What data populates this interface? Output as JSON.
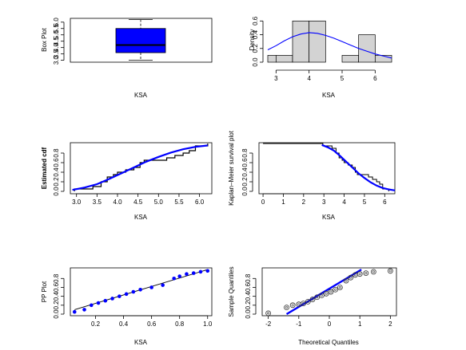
{
  "chart_data": [
    {
      "type": "box",
      "ylabel": "Box Plot",
      "xlabel": "KSA",
      "yticks": [
        "3.0",
        "3.5",
        "4.0",
        "4.5",
        "5.0",
        "5.5",
        "6.0"
      ],
      "ylim": [
        2.85,
        6.3
      ],
      "box": {
        "min": 3.0,
        "q1": 3.6,
        "median": 4.2,
        "q3": 5.5,
        "max": 6.2
      },
      "colors": {
        "box_fill": "#0000ff"
      }
    },
    {
      "type": "histogram",
      "ylabel": "Density",
      "xlabel": "KSA",
      "xticks": [
        "3",
        "4",
        "5",
        "6"
      ],
      "yticks": [
        "0.0",
        "0.2",
        "0.4",
        "0.6"
      ],
      "xlim": [
        2.75,
        6.5
      ],
      "ylim": [
        0,
        0.65
      ],
      "bins": [
        {
          "x0": 2.5,
          "x1": 3.0,
          "density": 0.1
        },
        {
          "x0": 3.0,
          "x1": 3.5,
          "density": 0.1
        },
        {
          "x0": 3.5,
          "x1": 4.0,
          "density": 0.6
        },
        {
          "x0": 4.0,
          "x1": 4.5,
          "density": 0.6
        },
        {
          "x0": 4.5,
          "x1": 5.0,
          "density": 0.0
        },
        {
          "x0": 5.0,
          "x1": 5.5,
          "density": 0.1
        },
        {
          "x0": 5.5,
          "x1": 6.0,
          "density": 0.4
        },
        {
          "x0": 6.0,
          "x1": 6.5,
          "density": 0.1
        }
      ],
      "density_curve": {
        "x": [
          2.75,
          3.0,
          3.25,
          3.5,
          3.75,
          4.0,
          4.25,
          4.5,
          4.75,
          5.0,
          5.25,
          5.5,
          5.75,
          6.0,
          6.25,
          6.5
        ],
        "y": [
          0.18,
          0.24,
          0.31,
          0.37,
          0.41,
          0.43,
          0.42,
          0.39,
          0.35,
          0.3,
          0.25,
          0.2,
          0.16,
          0.12,
          0.09,
          0.06
        ]
      },
      "colors": {
        "bar_fill": "#d3d3d3",
        "curve": "#0000ff"
      }
    },
    {
      "type": "line",
      "ylabel": "Estimated cdf",
      "xlabel": "KSA",
      "xticks": [
        "3.0",
        "3.5",
        "4.0",
        "4.5",
        "5.0",
        "5.5",
        "6.0"
      ],
      "yticks": [
        "0.0",
        "0.2",
        "0.4",
        "0.6",
        "0.8"
      ],
      "xlim": [
        2.85,
        6.3
      ],
      "ylim": [
        0,
        1.0
      ],
      "ecdf": {
        "x": [
          2.95,
          3.4,
          3.6,
          3.75,
          3.9,
          4.0,
          4.2,
          4.4,
          4.55,
          4.65,
          5.2,
          5.4,
          5.6,
          5.75,
          5.9,
          6.2
        ],
        "y": [
          0.05,
          0.1,
          0.2,
          0.3,
          0.35,
          0.4,
          0.45,
          0.5,
          0.6,
          0.65,
          0.7,
          0.75,
          0.8,
          0.85,
          0.95,
          1.0
        ]
      },
      "fit_curve": {
        "x": [
          2.9,
          3.2,
          3.5,
          3.8,
          4.1,
          4.4,
          4.7,
          5.0,
          5.3,
          5.6,
          5.9,
          6.2
        ],
        "y": [
          0.03,
          0.08,
          0.15,
          0.26,
          0.38,
          0.5,
          0.62,
          0.72,
          0.81,
          0.88,
          0.93,
          0.96
        ]
      },
      "colors": {
        "step": "#000000",
        "curve": "#0000ff"
      }
    },
    {
      "type": "line",
      "ylabel": "Kaplan–Meier survival plot",
      "xlabel": "KSA",
      "xticks": [
        "0",
        "1",
        "2",
        "3",
        "4",
        "5",
        "6"
      ],
      "yticks": [
        "0.0",
        "0.2",
        "0.4",
        "0.6",
        "0.8"
      ],
      "xlim": [
        -0.2,
        6.5
      ],
      "ylim": [
        0,
        1.0
      ],
      "km": {
        "x": [
          0,
          2.95,
          3.4,
          3.6,
          3.75,
          3.9,
          4.0,
          4.2,
          4.4,
          4.55,
          4.65,
          5.2,
          5.4,
          5.6,
          5.75,
          5.9,
          6.2
        ],
        "y": [
          1.0,
          0.95,
          0.9,
          0.8,
          0.7,
          0.65,
          0.6,
          0.55,
          0.5,
          0.4,
          0.35,
          0.3,
          0.25,
          0.2,
          0.15,
          0.05,
          0.0
        ]
      },
      "fit_curve": {
        "x": [
          2.9,
          3.2,
          3.5,
          3.8,
          4.1,
          4.4,
          4.7,
          5.0,
          5.3,
          5.6,
          5.9,
          6.2,
          6.5
        ],
        "y": [
          0.97,
          0.92,
          0.85,
          0.74,
          0.62,
          0.5,
          0.38,
          0.28,
          0.19,
          0.12,
          0.07,
          0.04,
          0.02
        ]
      },
      "colors": {
        "step": "#000000",
        "curve": "#0000ff"
      }
    },
    {
      "type": "scatter",
      "ylabel": "PP Plot",
      "xlabel": "KSA",
      "xticks": [
        "0.2",
        "0.4",
        "0.6",
        "0.8",
        "1.0"
      ],
      "yticks": [
        "0.0",
        "0.2",
        "0.4",
        "0.6",
        "0.8"
      ],
      "xlim": [
        0.02,
        1.03
      ],
      "ylim": [
        0,
        1.02
      ],
      "points": {
        "x": [
          0.05,
          0.12,
          0.17,
          0.22,
          0.27,
          0.32,
          0.37,
          0.42,
          0.47,
          0.52,
          0.6,
          0.68,
          0.76,
          0.8,
          0.85,
          0.9,
          0.95,
          1.0
        ],
        "y": [
          0.05,
          0.1,
          0.2,
          0.25,
          0.3,
          0.35,
          0.4,
          0.45,
          0.5,
          0.55,
          0.6,
          0.65,
          0.8,
          0.85,
          0.9,
          0.92,
          0.95,
          0.97
        ]
      },
      "ref_line": {
        "x": [
          0.05,
          1.0
        ],
        "y": [
          0.1,
          1.0
        ]
      },
      "colors": {
        "points": "#0000ff",
        "line": "#000000"
      }
    },
    {
      "type": "scatter",
      "ylabel": "Sample Quantiles",
      "xlabel": "Theoretical Quantiles",
      "xticks": [
        "-2",
        "-1",
        "0",
        "1",
        "2"
      ],
      "yticks": [
        "0.0",
        "0.2",
        "0.4",
        "0.6",
        "0.8"
      ],
      "xlim": [
        -2.2,
        2.2
      ],
      "ylim": [
        0,
        1.02
      ],
      "points": {
        "x": [
          -2.0,
          -1.4,
          -1.2,
          -1.0,
          -0.85,
          -0.7,
          -0.55,
          -0.4,
          -0.25,
          -0.1,
          0.05,
          0.2,
          0.35,
          0.55,
          0.7,
          0.85,
          1.0,
          1.2,
          1.45,
          2.0
        ],
        "y": [
          0.02,
          0.15,
          0.2,
          0.22,
          0.24,
          0.28,
          0.33,
          0.38,
          0.42,
          0.46,
          0.5,
          0.55,
          0.6,
          0.75,
          0.82,
          0.88,
          0.9,
          0.92,
          0.95,
          0.97
        ]
      },
      "ref_line": {
        "x": [
          -1.4,
          1.05
        ],
        "y": [
          0.0,
          1.0
        ]
      },
      "colors": {
        "points": "#333333",
        "line": "#0000ff"
      }
    }
  ]
}
